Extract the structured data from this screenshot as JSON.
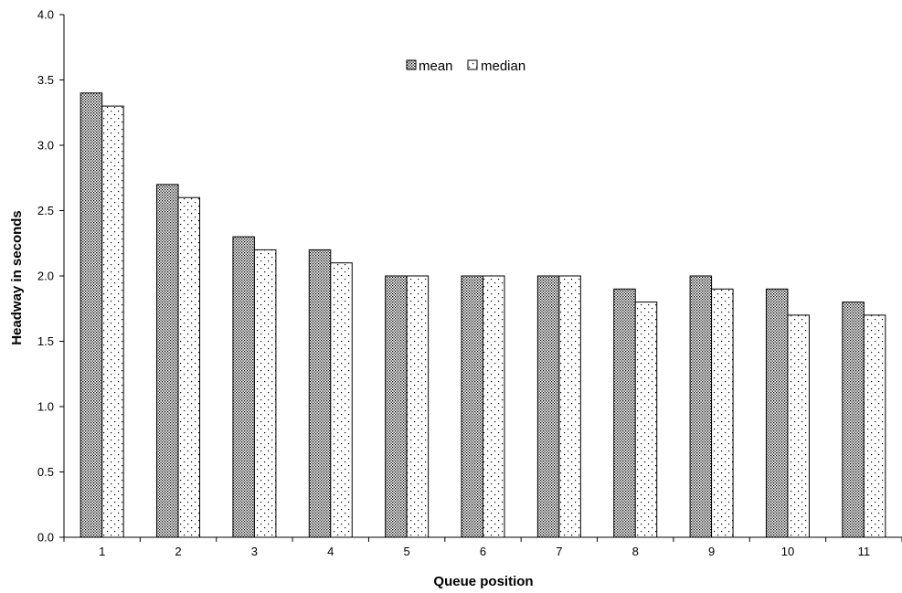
{
  "chart_data": {
    "type": "bar",
    "title": "",
    "xlabel": "Queue position",
    "ylabel": "Headway in seconds",
    "categories": [
      "1",
      "2",
      "3",
      "4",
      "5",
      "6",
      "7",
      "8",
      "9",
      "10",
      "11"
    ],
    "series": [
      {
        "name": "mean",
        "values": [
          3.4,
          2.7,
          2.3,
          2.2,
          2.0,
          2.0,
          2.0,
          1.9,
          2.0,
          1.9,
          1.8
        ],
        "pattern": "dense-dots"
      },
      {
        "name": "median",
        "values": [
          3.3,
          2.6,
          2.2,
          2.1,
          2.0,
          2.0,
          2.0,
          1.8,
          1.9,
          1.7,
          1.7
        ],
        "pattern": "sparse-dots"
      }
    ],
    "ylim": [
      0,
      4.0
    ],
    "yticks": [
      "0.0",
      "0.5",
      "1.0",
      "1.5",
      "2.0",
      "2.5",
      "3.0",
      "3.5",
      "4.0"
    ],
    "grid": false,
    "legend_position": "top-center"
  }
}
